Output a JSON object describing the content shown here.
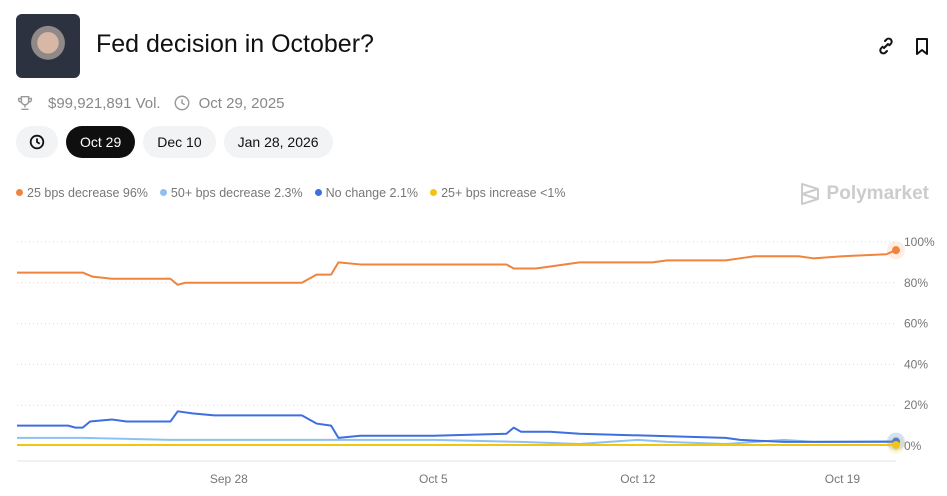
{
  "header": {
    "title": "Fed decision in October?",
    "volume": "$99,921,891 Vol.",
    "end_date": "Oct 29, 2025",
    "link_icon": "link-icon",
    "bookmark_icon": "bookmark-icon"
  },
  "tabs": [
    {
      "label": "Oct 29",
      "active": true
    },
    {
      "label": "Dec 10"
    },
    {
      "label": "Jan 28, 2026"
    }
  ],
  "brand": "Polymarket",
  "chart_data": {
    "type": "line",
    "ylim": [
      0,
      100
    ],
    "yticks": [
      "0%",
      "20%",
      "40%",
      "60%",
      "80%",
      "100%"
    ],
    "ytick_values": [
      0,
      20,
      40,
      60,
      80,
      100
    ],
    "xticks": [
      {
        "label": "Sep 28",
        "date": "2025-09-28T00:00"
      },
      {
        "label": "Oct 5",
        "date": "2025-10-05T00:00"
      },
      {
        "label": "Oct 12",
        "date": "2025-10-12T00:00"
      },
      {
        "label": "Oct 19",
        "date": "2025-10-19T00:00"
      }
    ],
    "xlim": [
      "2025-09-20T18:00",
      "2025-10-20T20:00"
    ],
    "grid": true,
    "legend_position": "top-left",
    "series": [
      {
        "name": "25 bps decrease",
        "label": "96%",
        "color": "#f0843c",
        "points": [
          [
            "2025-09-20T18:00",
            85
          ],
          [
            "2025-09-23T00:00",
            85
          ],
          [
            "2025-09-23T08:00",
            83
          ],
          [
            "2025-09-24T00:00",
            82
          ],
          [
            "2025-09-26T00:00",
            82
          ],
          [
            "2025-09-26T06:00",
            79
          ],
          [
            "2025-09-26T12:00",
            80
          ],
          [
            "2025-09-30T12:00",
            80
          ],
          [
            "2025-10-01T00:00",
            84
          ],
          [
            "2025-10-01T12:00",
            84
          ],
          [
            "2025-10-01T18:00",
            90
          ],
          [
            "2025-10-02T12:00",
            89
          ],
          [
            "2025-10-07T12:00",
            89
          ],
          [
            "2025-10-07T18:00",
            87
          ],
          [
            "2025-10-08T12:00",
            87
          ],
          [
            "2025-10-09T00:00",
            88
          ],
          [
            "2025-10-10T00:00",
            90
          ],
          [
            "2025-10-12T12:00",
            90
          ],
          [
            "2025-10-13T00:00",
            91
          ],
          [
            "2025-10-15T00:00",
            91
          ],
          [
            "2025-10-15T12:00",
            92
          ],
          [
            "2025-10-16T00:00",
            93
          ],
          [
            "2025-10-17T12:00",
            93
          ],
          [
            "2025-10-18T00:00",
            92
          ],
          [
            "2025-10-19T00:00",
            93
          ],
          [
            "2025-10-20T12:00",
            94
          ],
          [
            "2025-10-20T20:00",
            96
          ]
        ]
      },
      {
        "name": "50+ bps decrease",
        "label": "2.3%",
        "color": "#8fc1f0",
        "points": [
          [
            "2025-09-20T18:00",
            4
          ],
          [
            "2025-09-23T00:00",
            4
          ],
          [
            "2025-09-26T00:00",
            3
          ],
          [
            "2025-10-01T00:00",
            3
          ],
          [
            "2025-10-05T00:00",
            3
          ],
          [
            "2025-10-08T00:00",
            2
          ],
          [
            "2025-10-10T00:00",
            1
          ],
          [
            "2025-10-11T00:00",
            2
          ],
          [
            "2025-10-12T00:00",
            3
          ],
          [
            "2025-10-13T00:00",
            2
          ],
          [
            "2025-10-15T00:00",
            1
          ],
          [
            "2025-10-17T00:00",
            3
          ],
          [
            "2025-10-18T00:00",
            2
          ],
          [
            "2025-10-20T20:00",
            2.3
          ]
        ]
      },
      {
        "name": "No change",
        "label": "2.1%",
        "color": "#3d6fe0",
        "points": [
          [
            "2025-09-20T18:00",
            10
          ],
          [
            "2025-09-22T12:00",
            10
          ],
          [
            "2025-09-22T18:00",
            9
          ],
          [
            "2025-09-23T00:00",
            9
          ],
          [
            "2025-09-23T06:00",
            12
          ],
          [
            "2025-09-24T00:00",
            13
          ],
          [
            "2025-09-24T12:00",
            12
          ],
          [
            "2025-09-26T00:00",
            12
          ],
          [
            "2025-09-26T06:00",
            17
          ],
          [
            "2025-09-26T18:00",
            16
          ],
          [
            "2025-09-27T12:00",
            15
          ],
          [
            "2025-09-30T12:00",
            15
          ],
          [
            "2025-10-01T00:00",
            11
          ],
          [
            "2025-10-01T12:00",
            10
          ],
          [
            "2025-10-01T18:00",
            4
          ],
          [
            "2025-10-02T12:00",
            5
          ],
          [
            "2025-10-05T00:00",
            5
          ],
          [
            "2025-10-07T12:00",
            6
          ],
          [
            "2025-10-07T18:00",
            9
          ],
          [
            "2025-10-08T00:00",
            7
          ],
          [
            "2025-10-09T00:00",
            7
          ],
          [
            "2025-10-10T00:00",
            6
          ],
          [
            "2025-10-12T12:00",
            5
          ],
          [
            "2025-10-15T00:00",
            4
          ],
          [
            "2025-10-15T12:00",
            3
          ],
          [
            "2025-10-17T00:00",
            2
          ],
          [
            "2025-10-20T20:00",
            2.1
          ]
        ]
      },
      {
        "name": "25+ bps increase",
        "label": "<1%",
        "color": "#f2c511",
        "points": [
          [
            "2025-09-20T18:00",
            0.5
          ],
          [
            "2025-10-20T20:00",
            0.5
          ]
        ]
      }
    ]
  }
}
